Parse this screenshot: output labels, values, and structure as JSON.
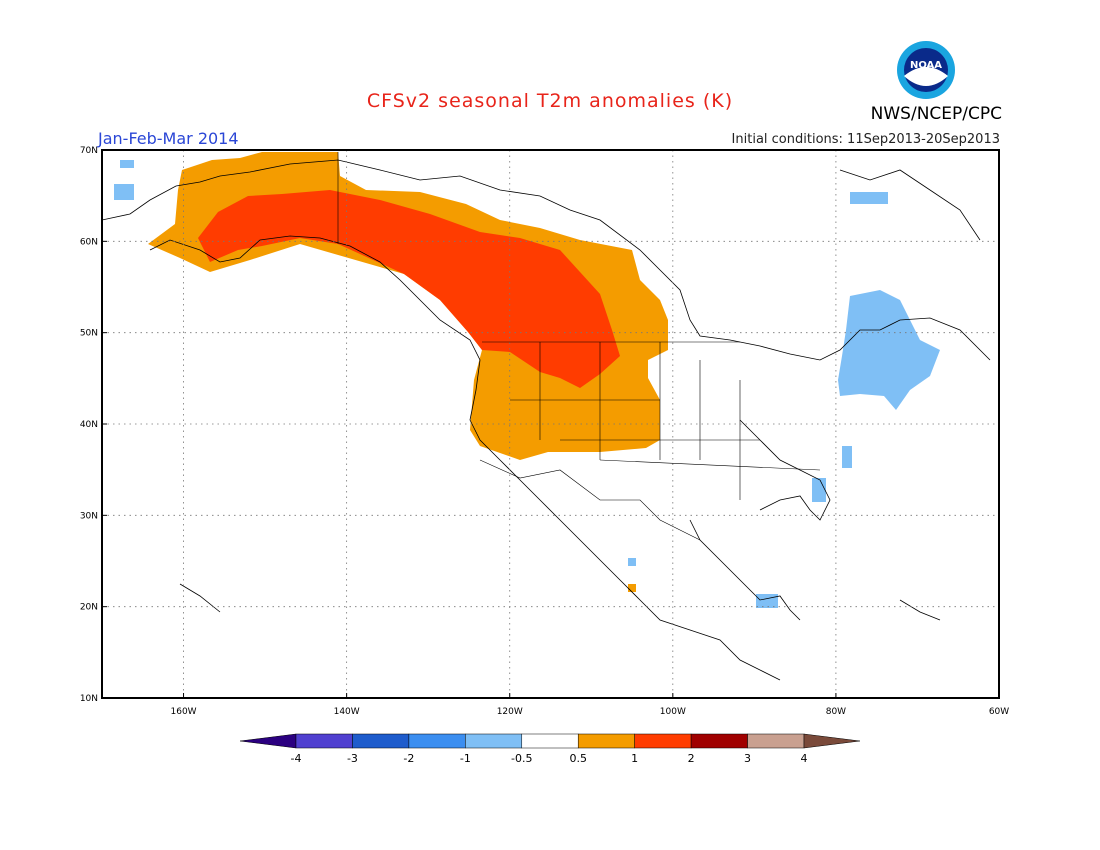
{
  "header": {
    "title": "CFSv2 seasonal T2m anomalies (K)",
    "season": "Jan-Feb-Mar 2014",
    "initial_conditions": "Initial conditions: 11Sep2013-20Sep2013",
    "agency": "NWS/NCEP/CPC",
    "logo_text": "NOAA"
  },
  "map": {
    "lon_range": [
      -170,
      -60
    ],
    "lat_range": [
      10,
      70
    ],
    "lat_ticks": [
      "10N",
      "20N",
      "30N",
      "40N",
      "50N",
      "60N",
      "70N"
    ],
    "lon_ticks": [
      "160W",
      "140W",
      "120W",
      "100W",
      "80W",
      "60W"
    ],
    "grid": "dotted",
    "projection": "lat-lon"
  },
  "colorbar": {
    "labels": [
      "-4",
      "-3",
      "-2",
      "-1",
      "-0.5",
      "0.5",
      "1",
      "2",
      "3",
      "4"
    ],
    "colors": [
      "#2b0080",
      "#5040d0",
      "#1e5ccc",
      "#3b8ef0",
      "#7fbff5",
      "#ffffff",
      "#f49c00",
      "#ff3c00",
      "#a00000",
      "#c9a090",
      "#7a4a3a"
    ]
  },
  "colors": {
    "warm_1_2": "#ff3c00",
    "warm_05_1": "#f49c00",
    "cool_05_1": "#7fbff5"
  }
}
